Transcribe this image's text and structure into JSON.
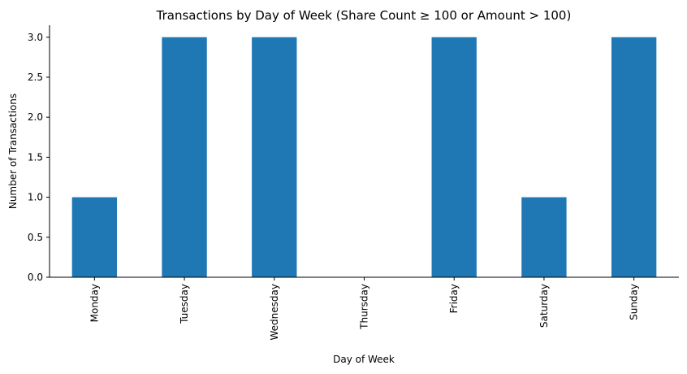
{
  "chart_data": {
    "type": "bar",
    "title": "Transactions by Day of Week (Share Count ≥ 100 or Amount > 100)",
    "xlabel": "Day of Week",
    "ylabel": "Number of Transactions",
    "categories": [
      "Monday",
      "Tuesday",
      "Wednesday",
      "Thursday",
      "Friday",
      "Saturday",
      "Sunday"
    ],
    "values": [
      1,
      3,
      3,
      0,
      3,
      1,
      3
    ],
    "ylim": [
      0,
      3.15
    ],
    "yticks": [
      0.0,
      0.5,
      1.0,
      1.5,
      2.0,
      2.5,
      3.0
    ],
    "ytick_labels": [
      "0.0",
      "0.5",
      "1.0",
      "1.5",
      "2.0",
      "2.5",
      "3.0"
    ],
    "bar_color": "#1f77b4",
    "grid": false,
    "legend": "none"
  }
}
